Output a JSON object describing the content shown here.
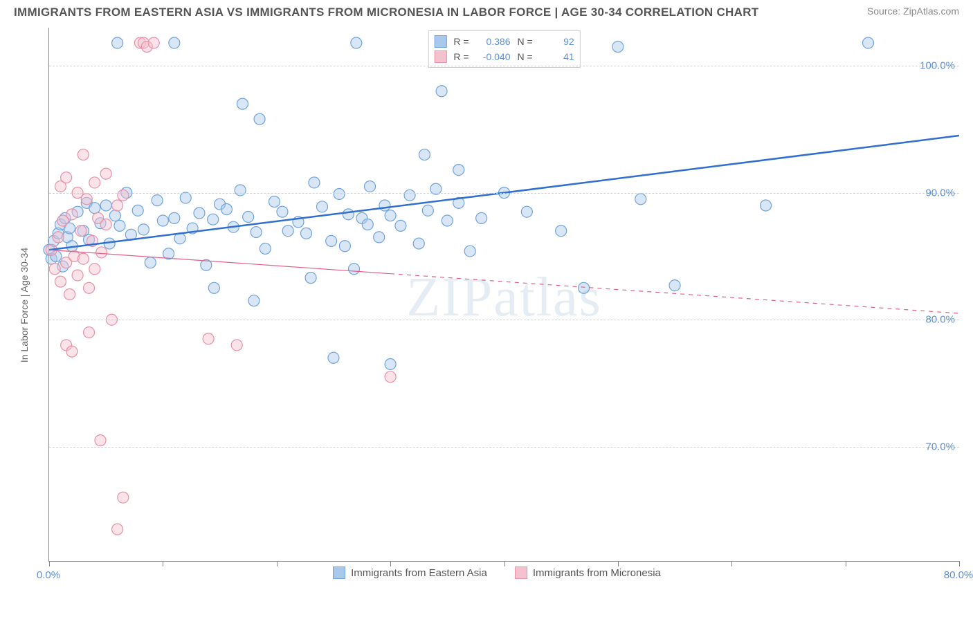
{
  "header": {
    "title": "IMMIGRANTS FROM EASTERN ASIA VS IMMIGRANTS FROM MICRONESIA IN LABOR FORCE | AGE 30-34 CORRELATION CHART",
    "source": "Source: ZipAtlas.com"
  },
  "chart": {
    "type": "scatter",
    "ylabel": "In Labor Force | Age 30-34",
    "watermark": "ZIPatlas",
    "xlim": [
      0,
      80
    ],
    "ylim": [
      61,
      103
    ],
    "xticks": [
      0,
      10,
      20,
      30,
      40,
      50,
      60,
      70,
      80
    ],
    "xtick_labels": {
      "0": "0.0%",
      "80": "80.0%"
    },
    "yticks": [
      70,
      80,
      90,
      100
    ],
    "ytick_labels": [
      "70.0%",
      "80.0%",
      "90.0%",
      "100.0%"
    ],
    "background_color": "#ffffff",
    "grid_color": "#d0d0d0",
    "axis_color": "#888888",
    "tick_label_color": "#5b8fd6",
    "marker_radius": 8,
    "marker_opacity": 0.45,
    "series": [
      {
        "name": "Immigrants from Eastern Asia",
        "color_fill": "#a8c8ec",
        "color_stroke": "#6fa3dd",
        "R": "0.386",
        "N": "92",
        "trend": {
          "x1": 0,
          "y1": 85.5,
          "x2": 80,
          "y2": 94.5,
          "stroke": "#2f6fd0",
          "width": 2.5,
          "dash": ""
        },
        "points": [
          [
            0,
            85.5
          ],
          [
            0.2,
            84.8
          ],
          [
            0.4,
            86.2
          ],
          [
            0.6,
            85.0
          ],
          [
            0.8,
            86.8
          ],
          [
            1.0,
            87.5
          ],
          [
            1.2,
            84.2
          ],
          [
            1.4,
            88.0
          ],
          [
            1.6,
            86.5
          ],
          [
            1.8,
            87.2
          ],
          [
            2.0,
            85.8
          ],
          [
            2.5,
            88.5
          ],
          [
            3.0,
            87.0
          ],
          [
            3.3,
            89.2
          ],
          [
            3.5,
            86.3
          ],
          [
            4.0,
            88.8
          ],
          [
            4.5,
            87.6
          ],
          [
            5.0,
            89.0
          ],
          [
            5.3,
            86.0
          ],
          [
            5.8,
            88.2
          ],
          [
            6.2,
            87.4
          ],
          [
            6.8,
            90.0
          ],
          [
            7.2,
            86.7
          ],
          [
            7.8,
            88.6
          ],
          [
            8.3,
            87.1
          ],
          [
            8.9,
            84.5
          ],
          [
            9.5,
            89.4
          ],
          [
            10.0,
            87.8
          ],
          [
            10.5,
            85.2
          ],
          [
            11.0,
            88.0
          ],
          [
            11.5,
            86.4
          ],
          [
            12.0,
            89.6
          ],
          [
            12.6,
            87.2
          ],
          [
            13.2,
            88.4
          ],
          [
            13.8,
            84.3
          ],
          [
            14.4,
            87.9
          ],
          [
            15.0,
            89.1
          ],
          [
            15.6,
            88.7
          ],
          [
            16.2,
            87.3
          ],
          [
            16.8,
            90.2
          ],
          [
            17.5,
            88.1
          ],
          [
            18.2,
            86.9
          ],
          [
            19.0,
            85.6
          ],
          [
            19.8,
            89.3
          ],
          [
            20.5,
            88.5
          ],
          [
            21.0,
            87.0
          ],
          [
            21.9,
            87.7
          ],
          [
            22.6,
            86.8
          ],
          [
            23.3,
            90.8
          ],
          [
            24.0,
            88.9
          ],
          [
            24.8,
            86.2
          ],
          [
            25.5,
            89.9
          ],
          [
            26.0,
            85.8
          ],
          [
            26.3,
            88.3
          ],
          [
            26.8,
            84.0
          ],
          [
            27.5,
            88.0
          ],
          [
            28.0,
            87.5
          ],
          [
            28.2,
            90.5
          ],
          [
            29.0,
            86.5
          ],
          [
            29.5,
            89.0
          ],
          [
            30.0,
            88.2
          ],
          [
            30.9,
            87.4
          ],
          [
            31.7,
            89.8
          ],
          [
            32.5,
            86.0
          ],
          [
            33.3,
            88.6
          ],
          [
            34.0,
            90.3
          ],
          [
            35.0,
            87.8
          ],
          [
            36.0,
            89.2
          ],
          [
            37.0,
            85.4
          ],
          [
            38.0,
            88.0
          ],
          [
            27.0,
            101.8
          ],
          [
            11.0,
            101.8
          ],
          [
            17.0,
            97.0
          ],
          [
            18.5,
            95.8
          ],
          [
            33.0,
            93.0
          ],
          [
            34.5,
            98.0
          ],
          [
            36.0,
            91.8
          ],
          [
            25.0,
            77.0
          ],
          [
            30.0,
            76.5
          ],
          [
            14.5,
            82.5
          ],
          [
            18.0,
            81.5
          ],
          [
            23.0,
            83.3
          ],
          [
            40.0,
            90.0
          ],
          [
            42.0,
            88.5
          ],
          [
            45.0,
            87.0
          ],
          [
            47.0,
            82.5
          ],
          [
            50.0,
            101.5
          ],
          [
            52.0,
            89.5
          ],
          [
            55.0,
            82.7
          ],
          [
            63.0,
            89.0
          ],
          [
            72.0,
            101.8
          ],
          [
            6.0,
            101.8
          ]
        ]
      },
      {
        "name": "Immigrants from Micronesia",
        "color_fill": "#f4c2cf",
        "color_stroke": "#e890a8",
        "R": "-0.040",
        "N": "41",
        "trend": {
          "x1": 0,
          "y1": 85.5,
          "x2": 80,
          "y2": 80.5,
          "stroke": "#e06088",
          "width": 1.2,
          "dash_solid_until": 30,
          "dash": "6 6"
        },
        "points": [
          [
            0.2,
            85.5
          ],
          [
            0.5,
            84.0
          ],
          [
            0.8,
            86.5
          ],
          [
            1.0,
            83.0
          ],
          [
            1.2,
            87.8
          ],
          [
            1.5,
            84.5
          ],
          [
            1.8,
            82.0
          ],
          [
            2.0,
            88.3
          ],
          [
            2.2,
            85.0
          ],
          [
            2.5,
            83.5
          ],
          [
            2.8,
            87.0
          ],
          [
            3.0,
            84.8
          ],
          [
            3.3,
            89.5
          ],
          [
            3.5,
            82.5
          ],
          [
            3.8,
            86.2
          ],
          [
            4.0,
            84.0
          ],
          [
            4.3,
            88.0
          ],
          [
            4.6,
            85.3
          ],
          [
            5.0,
            87.5
          ],
          [
            5.5,
            80.0
          ],
          [
            6.0,
            89.0
          ],
          [
            1.0,
            90.5
          ],
          [
            1.5,
            91.2
          ],
          [
            2.5,
            90.0
          ],
          [
            3.0,
            93.0
          ],
          [
            4.0,
            90.8
          ],
          [
            5.0,
            91.5
          ],
          [
            6.5,
            89.8
          ],
          [
            8.0,
            101.8
          ],
          [
            8.3,
            101.8
          ],
          [
            8.6,
            101.5
          ],
          [
            9.2,
            101.8
          ],
          [
            1.5,
            78.0
          ],
          [
            2.0,
            77.5
          ],
          [
            3.5,
            79.0
          ],
          [
            14.0,
            78.5
          ],
          [
            16.5,
            78.0
          ],
          [
            4.5,
            70.5
          ],
          [
            6.5,
            66.0
          ],
          [
            6.0,
            63.5
          ],
          [
            30.0,
            75.5
          ]
        ]
      }
    ],
    "bottom_legend": [
      {
        "label": "Immigrants from Eastern Asia",
        "fill": "#a8c8ec",
        "stroke": "#6fa3dd"
      },
      {
        "label": "Immigrants from Micronesia",
        "fill": "#f4c2cf",
        "stroke": "#e890a8"
      }
    ]
  }
}
